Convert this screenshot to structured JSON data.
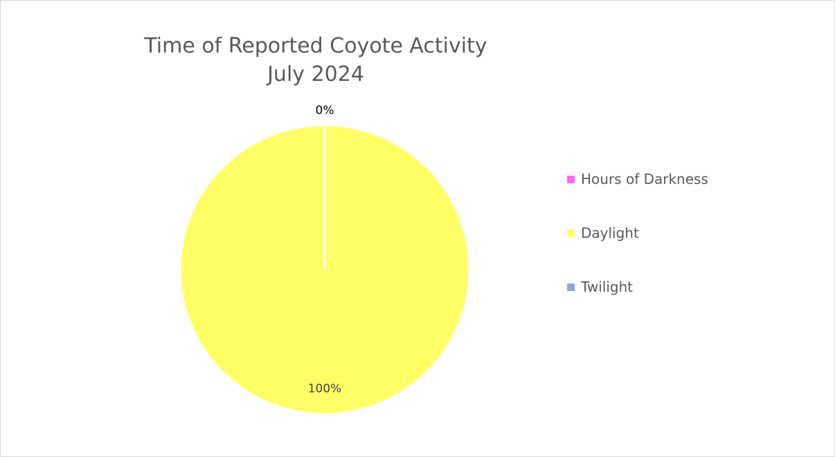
{
  "chart_data": {
    "type": "pie",
    "title": [
      "Time of Reported Coyote Activity",
      "July 2024"
    ],
    "categories": [
      "Hours of Darkness",
      "Daylight",
      "Twilight"
    ],
    "values": [
      0,
      100,
      0
    ],
    "colors": [
      "#ff66ff",
      "#ffff66",
      "#8eaadb"
    ],
    "data_labels": [
      "0%",
      "100%",
      ""
    ],
    "legend_position": "right"
  }
}
